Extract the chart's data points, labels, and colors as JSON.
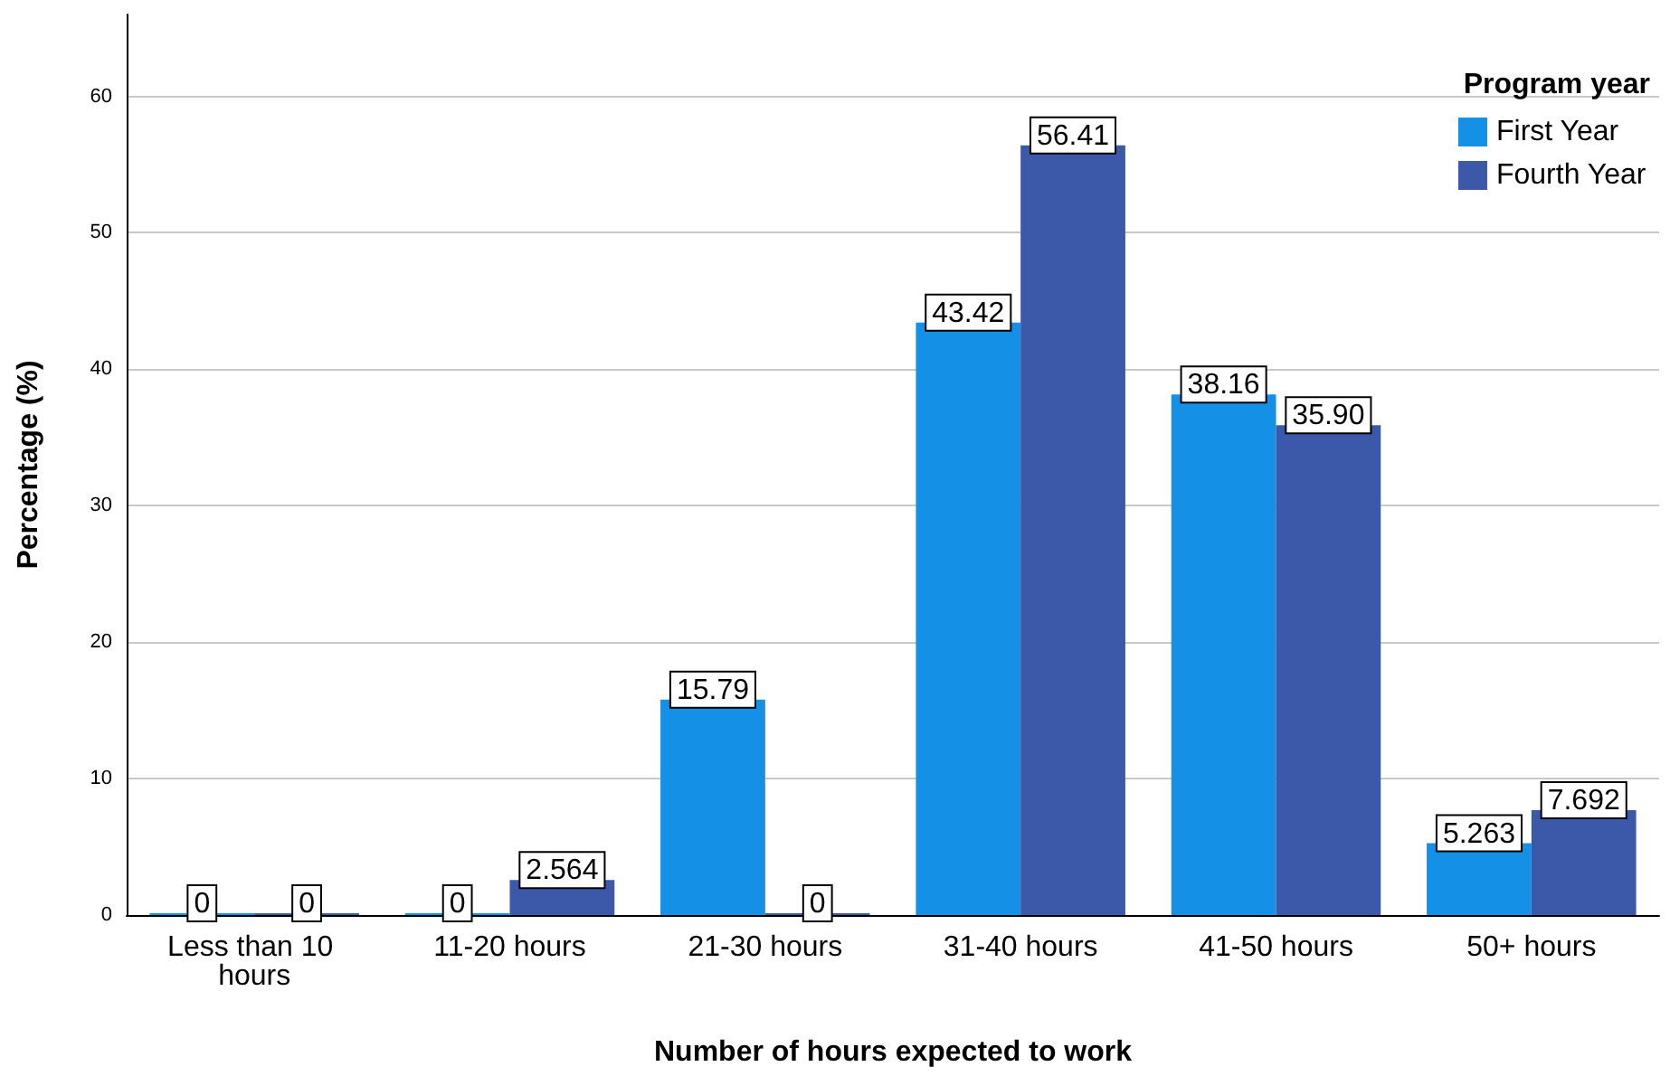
{
  "chart_data": {
    "type": "bar",
    "xlabel": "Number of hours expected to work",
    "ylabel": "Percentage (%)",
    "legend_title": "Program year",
    "categories": [
      "Less than 10 hours",
      "11-20 hours",
      "21-30 hours",
      "31-40 hours",
      "41-50 hours",
      "50+ hours"
    ],
    "series": [
      {
        "name": "First Year",
        "color": "#1490e6",
        "values": [
          0,
          0,
          15.79,
          43.42,
          38.16,
          5.263
        ],
        "value_labels": [
          "0",
          "0",
          "15.79",
          "43.42",
          "38.16",
          "5.263"
        ]
      },
      {
        "name": "Fourth Year",
        "color": "#3c58a8",
        "values": [
          0,
          2.564,
          0,
          56.41,
          35.9,
          7.692
        ],
        "value_labels": [
          "0",
          "2.564",
          "0",
          "56.41",
          "35.90",
          "7.692"
        ]
      }
    ],
    "ylim": [
      0,
      66
    ],
    "yticks": [
      0,
      10,
      20,
      30,
      40,
      50,
      60
    ],
    "grid": "y",
    "legend": "top right"
  }
}
